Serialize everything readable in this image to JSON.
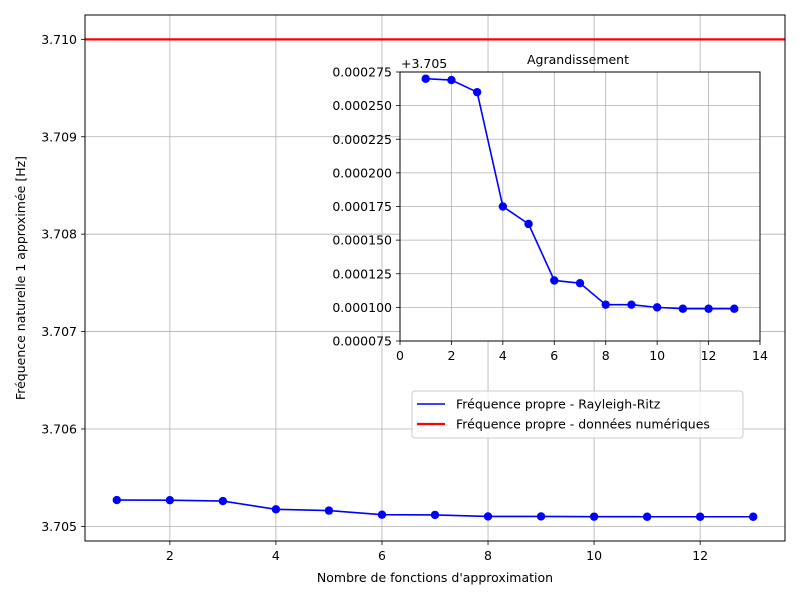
{
  "chart_data": [
    {
      "type": "line",
      "title": "",
      "xlabel": "Nombre de fonctions d'approximation",
      "ylabel": "Fréquence naturelle 1 approximée [Hz]",
      "xlim": [
        0.4,
        13.6
      ],
      "ylim": [
        3.70485,
        3.71025
      ],
      "xticks": [
        2,
        4,
        6,
        8,
        10,
        12
      ],
      "xtick_labels": [
        "2",
        "4",
        "6",
        "8",
        "10",
        "12"
      ],
      "yticks": [
        3.705,
        3.706,
        3.707,
        3.708,
        3.709,
        3.71
      ],
      "ytick_labels": [
        "3.705",
        "3.706",
        "3.707",
        "3.708",
        "3.709",
        "3.710"
      ],
      "grid": true,
      "legend_position": "center-right",
      "series": [
        {
          "name": "Fréquence propre - Rayleigh-Ritz",
          "color": "#0000ff",
          "marker": "circle",
          "x": [
            1,
            2,
            3,
            4,
            5,
            6,
            7,
            8,
            9,
            10,
            11,
            12,
            13
          ],
          "values": [
            3.70527,
            3.705269,
            3.70526,
            3.705175,
            3.705162,
            3.70512,
            3.705118,
            3.705102,
            3.705102,
            3.7051,
            3.705099,
            3.705099,
            3.705099
          ]
        },
        {
          "name": "Fréquence propre - données numériques",
          "color": "#ff0000",
          "style": "horizontal-line",
          "y": 3.71
        }
      ]
    },
    {
      "type": "line",
      "title": "Agrandissement",
      "xlabel": "",
      "ylabel": "",
      "offset_label": "+3.705",
      "xlim": [
        0,
        14
      ],
      "ylim": [
        7.5e-05,
        0.000275
      ],
      "xticks": [
        0,
        2,
        4,
        6,
        8,
        10,
        12,
        14
      ],
      "xtick_labels": [
        "0",
        "2",
        "4",
        "6",
        "8",
        "10",
        "12",
        "14"
      ],
      "yticks": [
        7.5e-05,
        0.0001,
        0.000125,
        0.00015,
        0.000175,
        0.0002,
        0.000225,
        0.00025,
        0.000275
      ],
      "ytick_labels": [
        "0.000075",
        "0.000100",
        "0.000125",
        "0.000150",
        "0.000175",
        "0.000200",
        "0.000225",
        "0.000250",
        "0.000275"
      ],
      "grid": true,
      "series": [
        {
          "color": "#0000ff",
          "marker": "circle",
          "x": [
            1,
            2,
            3,
            4,
            5,
            6,
            7,
            8,
            9,
            10,
            11,
            12,
            13
          ],
          "values": [
            0.00027,
            0.000269,
            0.00026,
            0.000175,
            0.000162,
            0.00012,
            0.000118,
            0.000102,
            0.000102,
            0.0001,
            9.9e-05,
            9.9e-05,
            9.9e-05
          ]
        }
      ]
    }
  ]
}
